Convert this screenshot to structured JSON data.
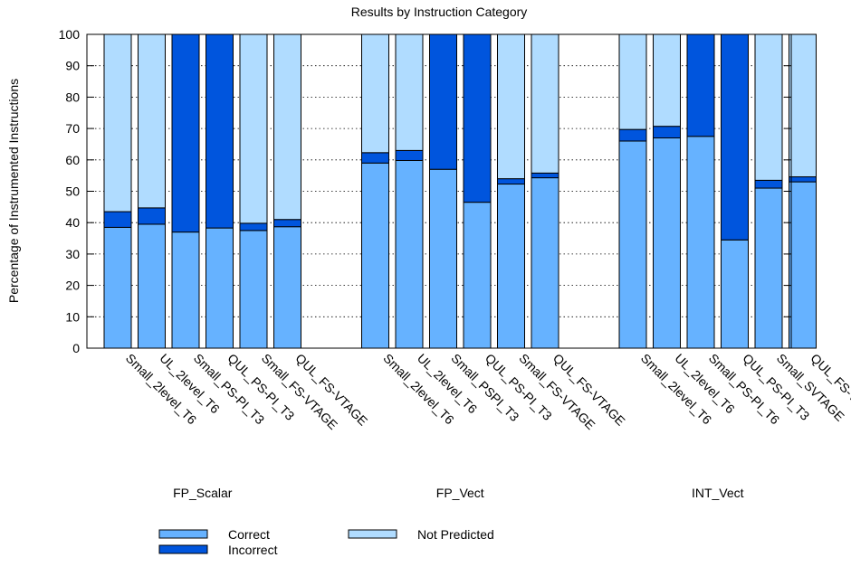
{
  "chart_data": {
    "type": "bar",
    "stacked": true,
    "title": "Results by Instruction Category",
    "ylabel": "Percentage of Instrumented Instructions",
    "xlabel": "",
    "ylim": [
      0,
      100
    ],
    "yticks": [
      0,
      10,
      20,
      30,
      40,
      50,
      60,
      70,
      80,
      90,
      100
    ],
    "grid": "horizontal dotted",
    "legend_position": "bottom",
    "groups": [
      {
        "name": "FP_Scalar",
        "bars": [
          {
            "label": "Small_2level_T6",
            "correct": 38.5,
            "incorrect": 5.0,
            "not_predicted": 56.5
          },
          {
            "label": "UL_2level_T6",
            "correct": 39.5,
            "incorrect": 5.2,
            "not_predicted": 55.3
          },
          {
            "label": "Small_PS-PI_T3",
            "correct": 37.0,
            "incorrect": 63.0,
            "not_predicted": 0.0
          },
          {
            "label": "QUL_PS-PI_T3",
            "correct": 38.3,
            "incorrect": 61.7,
            "not_predicted": 0.0
          },
          {
            "label": "Small_FS-VTAGE",
            "correct": 37.5,
            "incorrect": 2.3,
            "not_predicted": 60.2
          },
          {
            "label": "QUL_FS-VTAGE",
            "correct": 38.7,
            "incorrect": 2.3,
            "not_predicted": 59.0
          }
        ]
      },
      {
        "name": "FP_Vect",
        "bars": [
          {
            "label": "Small_2level_T6",
            "correct": 59.0,
            "incorrect": 3.3,
            "not_predicted": 37.7
          },
          {
            "label": "UL_2level_T6",
            "correct": 59.8,
            "incorrect": 3.2,
            "not_predicted": 37.0
          },
          {
            "label": "Small_PSPI_T3",
            "correct": 57.0,
            "incorrect": 43.0,
            "not_predicted": 0.0
          },
          {
            "label": "QUL_PS-PI_T3",
            "correct": 46.5,
            "incorrect": 53.5,
            "not_predicted": 0.0
          },
          {
            "label": "Small_FS-VTAGE",
            "correct": 52.3,
            "incorrect": 1.7,
            "not_predicted": 46.0
          },
          {
            "label": "QUL_FS-VTAGE",
            "correct": 54.3,
            "incorrect": 1.5,
            "not_predicted": 44.2
          }
        ]
      },
      {
        "name": "INT_Vect",
        "bars": [
          {
            "label": "Small_2level_T6",
            "correct": 66.0,
            "incorrect": 3.7,
            "not_predicted": 30.3
          },
          {
            "label": "UL_2level_T6",
            "correct": 67.0,
            "incorrect": 3.7,
            "not_predicted": 29.3
          },
          {
            "label": "Small_PS-PI_T6",
            "correct": 67.5,
            "incorrect": 32.5,
            "not_predicted": 0.0
          },
          {
            "label": "QUL_PS-PI_T3",
            "correct": 34.5,
            "incorrect": 65.5,
            "not_predicted": 0.0
          },
          {
            "label": "Small_SVTAGE",
            "correct": 51.0,
            "incorrect": 2.5,
            "not_predicted": 46.5
          },
          {
            "label": "QUL_FS-VTAGE",
            "correct": 53.0,
            "incorrect": 1.6,
            "not_predicted": 45.4
          }
        ]
      }
    ],
    "series": [
      {
        "name": "Correct",
        "key": "correct",
        "color": "#66b2ff"
      },
      {
        "name": "Incorrect",
        "key": "incorrect",
        "color": "#0055dd"
      },
      {
        "name": "Not Predicted",
        "key": "not_predicted",
        "color": "#b0dcff"
      }
    ]
  }
}
